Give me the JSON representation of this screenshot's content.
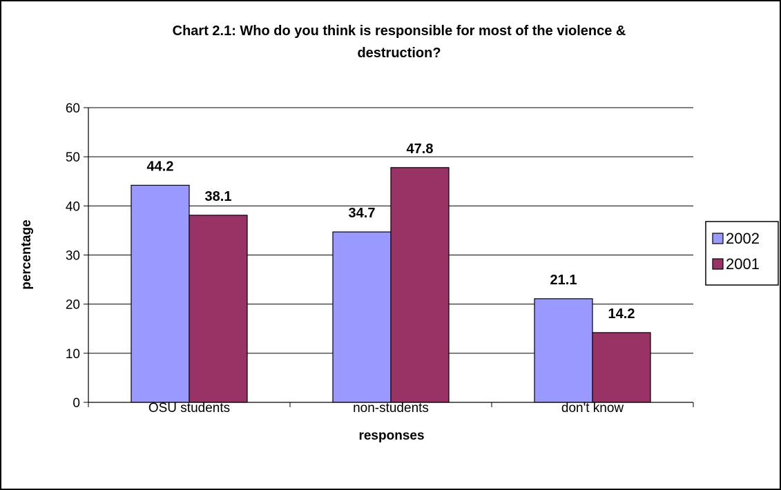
{
  "chart_data": {
    "type": "bar",
    "title_line1": "Chart 2.1: Who do you think is responsible for most of the violence &",
    "title_line2": "destruction?",
    "xlabel": "responses",
    "ylabel": "percentage",
    "categories": [
      "OSU students",
      "non-students",
      "don't know"
    ],
    "ylim": [
      0,
      60
    ],
    "yticks": [
      "0",
      "10",
      "20",
      "30",
      "40",
      "50",
      "60"
    ],
    "ytick_values": [
      0,
      10,
      20,
      30,
      40,
      50,
      60
    ],
    "grid": true,
    "legend_position": "right",
    "series": [
      {
        "name": "2002",
        "values": [
          44.2,
          34.7,
          21.1
        ],
        "labels": [
          "44.2",
          "34.7",
          "21.1"
        ],
        "color": "#9999ff"
      },
      {
        "name": "2001",
        "values": [
          38.1,
          47.8,
          14.2
        ],
        "labels": [
          "38.1",
          "47.8",
          "14.2"
        ],
        "color": "#993366"
      }
    ]
  }
}
